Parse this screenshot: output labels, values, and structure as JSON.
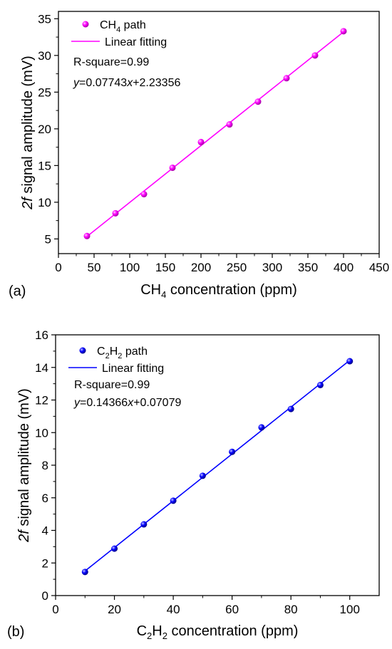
{
  "chart_data": [
    {
      "panel_label": "(a)",
      "type": "scatter",
      "title": "",
      "xlabel": {
        "pre": "CH",
        "sub": "4",
        "post": " concentration (ppm)"
      },
      "ylabel": {
        "italic": "2f",
        "post": " signal amplitude (mV)"
      },
      "xlim": [
        0,
        450
      ],
      "ylim": [
        3,
        36
      ],
      "xticks": [
        0,
        50,
        100,
        150,
        200,
        250,
        300,
        350,
        400,
        450
      ],
      "yticks": [
        5,
        10,
        15,
        20,
        25,
        30,
        35
      ],
      "color": "#ff00ff",
      "series": [
        {
          "name": {
            "pre": "CH",
            "sub": "4",
            "post": " path"
          },
          "x": [
            40,
            80,
            120,
            160,
            200,
            240,
            280,
            320,
            360,
            400
          ],
          "y": [
            5.4,
            8.5,
            11.1,
            14.7,
            18.2,
            20.6,
            23.7,
            26.9,
            30.0,
            33.3
          ]
        }
      ],
      "fit": {
        "name": "Linear fitting",
        "slope": 0.07743,
        "intercept": 2.23356,
        "x_range": [
          40,
          400
        ]
      },
      "annotations": {
        "r_square": "R-square=0.99",
        "equation": {
          "y": "y",
          "mid": "=0.07743",
          "x": "x",
          "post": "+2.23356"
        }
      }
    },
    {
      "panel_label": "(b)",
      "type": "scatter",
      "title": "",
      "xlabel": {
        "pre": "C",
        "sub": "2",
        "mid": "H",
        "sub2": "2",
        "post": " concentration (ppm)"
      },
      "ylabel": {
        "italic": "2f",
        "post": " signal amplitude (mV)"
      },
      "xlim": [
        0,
        110
      ],
      "ylim": [
        0,
        16
      ],
      "xticks": [
        0,
        20,
        40,
        60,
        80,
        100
      ],
      "yticks": [
        0,
        2,
        4,
        6,
        8,
        10,
        12,
        14,
        16
      ],
      "color": "#0000ff",
      "series": [
        {
          "name": {
            "pre": "C",
            "sub": "2",
            "mid": "H",
            "sub2": "2",
            "post": " path"
          },
          "x": [
            10,
            20,
            30,
            40,
            50,
            60,
            70,
            80,
            90,
            100
          ],
          "y": [
            1.45,
            2.88,
            4.37,
            5.82,
            7.35,
            8.82,
            10.32,
            11.45,
            12.92,
            14.38
          ]
        }
      ],
      "fit": {
        "name": "Linear fitting",
        "slope": 0.14366,
        "intercept": 0.07079,
        "x_range": [
          10,
          100
        ]
      },
      "annotations": {
        "r_square": "R-square=0.99",
        "equation": {
          "y": "y",
          "mid": "=0.14366",
          "x": "x",
          "post": "+0.07079"
        }
      }
    }
  ]
}
